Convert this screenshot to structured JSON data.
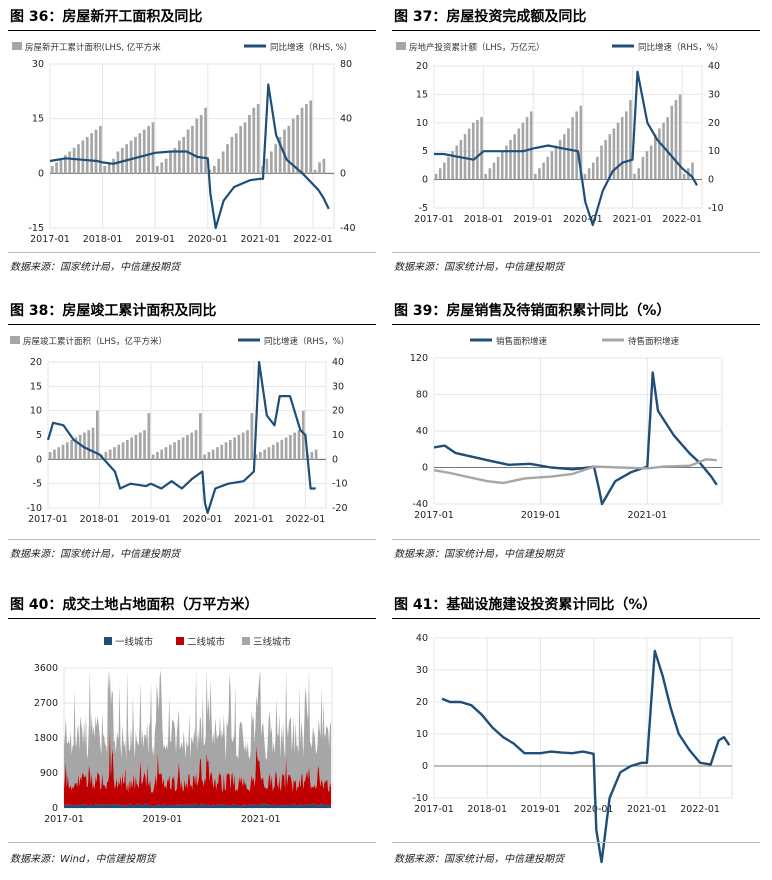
{
  "page": {
    "source_default": "数据来源：国家统计局，中信建投期货",
    "source_wind": "数据来源：Wind，中信建投期货"
  },
  "charts": [
    {
      "id": "f36",
      "title": "图 36：房屋新开工面积及同比",
      "source": "数据来源：国家统计局，中信建投期货",
      "chart_data": {
        "type": "bar+line",
        "legend": [
          "房屋新开工累计面积(LHS, 亿平方米",
          "同比增速（RHS, %）"
        ],
        "left_ylim": [
          -15,
          30
        ],
        "left_ticks": [
          -15,
          0,
          15,
          30
        ],
        "right_ylim": [
          -40,
          80
        ],
        "right_ticks": [
          -40,
          0,
          40,
          80
        ],
        "x_ticks": [
          "2017-01",
          "2018-01",
          "2019-01",
          "2020-01",
          "2021-01",
          "2022-01"
        ],
        "bars": [
          [
            2,
            3,
            4,
            5,
            6,
            7,
            8,
            9,
            10,
            11,
            12,
            13
          ],
          [
            2,
            3,
            4,
            6,
            7,
            8,
            9,
            10,
            11,
            12,
            13,
            14
          ],
          [
            2,
            3,
            4,
            6,
            7,
            9,
            10,
            12,
            13,
            15,
            16,
            18
          ],
          [
            1,
            2,
            4,
            6,
            8,
            10,
            11,
            13,
            14,
            16,
            18,
            19
          ],
          [
            2,
            4,
            6,
            8,
            10,
            12,
            13,
            15,
            16,
            18,
            19,
            20
          ],
          [
            1,
            3,
            4
          ]
        ],
        "line": [
          [
            2017.0,
            9
          ],
          [
            2017.3,
            11
          ],
          [
            2017.6,
            10
          ],
          [
            2017.9,
            9
          ],
          [
            2018.0,
            8
          ],
          [
            2018.2,
            7
          ],
          [
            2018.5,
            10
          ],
          [
            2018.8,
            13
          ],
          [
            2019.0,
            15
          ],
          [
            2019.3,
            16
          ],
          [
            2019.6,
            16
          ],
          [
            2019.8,
            12
          ],
          [
            2020.0,
            11
          ],
          [
            2020.05,
            -15
          ],
          [
            2020.15,
            -40
          ],
          [
            2020.3,
            -20
          ],
          [
            2020.5,
            -10
          ],
          [
            2020.8,
            -5
          ],
          [
            2021.0,
            -4
          ],
          [
            2021.05,
            -4
          ],
          [
            2021.15,
            65
          ],
          [
            2021.3,
            28
          ],
          [
            2021.5,
            10
          ],
          [
            2021.8,
            0
          ],
          [
            2022.0,
            -8
          ],
          [
            2022.1,
            -12
          ],
          [
            2022.2,
            -18
          ],
          [
            2022.3,
            -26
          ]
        ]
      }
    },
    {
      "id": "f37",
      "title": "图 37：房屋投资完成额及同比",
      "source": "数据来源：国家统计局，中信建投期货",
      "chart_data": {
        "type": "bar+line",
        "legend": [
          "房地产投资累计额（LHS，万亿元）",
          "同比增速（RHS，%）"
        ],
        "left_ylim": [
          -5,
          20
        ],
        "left_ticks": [
          -5,
          0,
          5,
          10,
          15,
          20
        ],
        "right_ylim": [
          -10,
          40
        ],
        "right_ticks": [
          -10,
          0,
          10,
          20,
          30,
          40
        ],
        "x_ticks": [
          "2017-01",
          "2018-01",
          "2019-01",
          "2020-01",
          "2021-01",
          "2022-01"
        ],
        "bars": [
          [
            1,
            2,
            3,
            4,
            5,
            6,
            7,
            8,
            9,
            10,
            10.5,
            11
          ],
          [
            1,
            2,
            3,
            4,
            5,
            6,
            7,
            8,
            9,
            10,
            11,
            12
          ],
          [
            1,
            2,
            3,
            4,
            5,
            6,
            7,
            8,
            9,
            11,
            12,
            13
          ],
          [
            1,
            2,
            3,
            4,
            6,
            7,
            8,
            9,
            10,
            11,
            12,
            14
          ],
          [
            1,
            2,
            4,
            5,
            6,
            8,
            9,
            10,
            11,
            13,
            14,
            15
          ],
          [
            1,
            2,
            3
          ]
        ],
        "line": [
          [
            2017.0,
            9
          ],
          [
            2017.2,
            9
          ],
          [
            2017.5,
            8
          ],
          [
            2017.8,
            7
          ],
          [
            2018.0,
            10
          ],
          [
            2018.4,
            10
          ],
          [
            2018.8,
            10
          ],
          [
            2019.0,
            11
          ],
          [
            2019.3,
            12
          ],
          [
            2019.6,
            11
          ],
          [
            2019.9,
            10
          ],
          [
            2020.05,
            -8
          ],
          [
            2020.2,
            -16
          ],
          [
            2020.4,
            -4
          ],
          [
            2020.6,
            3
          ],
          [
            2020.8,
            6
          ],
          [
            2021.0,
            7
          ],
          [
            2021.1,
            38
          ],
          [
            2021.3,
            20
          ],
          [
            2021.5,
            14
          ],
          [
            2021.7,
            10
          ],
          [
            2021.9,
            6
          ],
          [
            2022.0,
            4
          ],
          [
            2022.2,
            1
          ],
          [
            2022.3,
            -2
          ]
        ]
      }
    },
    {
      "id": "f38",
      "title": "图 38：房屋竣工累计面积及同比",
      "source": "数据来源：国家统计局，中信建投期货",
      "chart_data": {
        "type": "bar+line",
        "legend": [
          "房屋竣工累计面积（LHS，亿平方米）",
          "同比增速（RHS，%）"
        ],
        "left_ylim": [
          -10,
          20
        ],
        "left_ticks": [
          -10,
          -5,
          0,
          5,
          10,
          15,
          20
        ],
        "right_ylim": [
          -20,
          40
        ],
        "right_ticks": [
          -20,
          -10,
          0,
          10,
          20,
          30,
          40
        ],
        "x_ticks": [
          "2017-01",
          "2018-01",
          "2019-01",
          "2020-01",
          "2021-01",
          "2022-01"
        ],
        "bars": [
          [
            1.5,
            2,
            2.5,
            3,
            3.5,
            4,
            4.5,
            5,
            5.5,
            6,
            6.5,
            10
          ],
          [
            1,
            1.5,
            2,
            2.5,
            3,
            3.5,
            4,
            4.5,
            5,
            5.5,
            6,
            9.5
          ],
          [
            1,
            1.5,
            2,
            2.5,
            3,
            3.5,
            4,
            4.5,
            5,
            5.5,
            6,
            9.5
          ],
          [
            1,
            1.5,
            2,
            2.5,
            3,
            3.5,
            4,
            4.5,
            5,
            5.5,
            6,
            9.5
          ],
          [
            1,
            1.5,
            2,
            2.5,
            3,
            3.5,
            4,
            4.5,
            5,
            5.5,
            6,
            10
          ],
          [
            1,
            1.5,
            2
          ]
        ],
        "line": [
          [
            2017.0,
            8
          ],
          [
            2017.1,
            15
          ],
          [
            2017.3,
            14
          ],
          [
            2017.5,
            8
          ],
          [
            2017.7,
            5
          ],
          [
            2018.0,
            2
          ],
          [
            2018.3,
            -5
          ],
          [
            2018.4,
            -12
          ],
          [
            2018.6,
            -10
          ],
          [
            2018.9,
            -11
          ],
          [
            2019.0,
            -10
          ],
          [
            2019.2,
            -12
          ],
          [
            2019.4,
            -9
          ],
          [
            2019.6,
            -12
          ],
          [
            2019.8,
            -8
          ],
          [
            2020.0,
            -5
          ],
          [
            2020.05,
            -18
          ],
          [
            2020.1,
            -22
          ],
          [
            2020.25,
            -12
          ],
          [
            2020.5,
            -10
          ],
          [
            2020.8,
            -9
          ],
          [
            2021.0,
            -5
          ],
          [
            2021.1,
            40
          ],
          [
            2021.25,
            18
          ],
          [
            2021.4,
            14
          ],
          [
            2021.5,
            26
          ],
          [
            2021.7,
            26
          ],
          [
            2021.9,
            12
          ],
          [
            2022.0,
            10
          ],
          [
            2022.1,
            -12
          ],
          [
            2022.2,
            -12
          ]
        ]
      }
    },
    {
      "id": "f39",
      "title": "图 39：房屋销售及待销面积累计同比（%）",
      "source": "数据来源：国家统计局，中信建投期货",
      "chart_data": {
        "type": "line",
        "legend": [
          "销售面积增速",
          "待售面积增速"
        ],
        "ylim": [
          -40,
          120
        ],
        "ticks": [
          -40,
          0,
          40,
          80,
          120
        ],
        "x_ticks": [
          "2017-01",
          "2019-01",
          "2021-01"
        ],
        "series": [
          {
            "name": "销售面积增速",
            "color": "#1f4e79",
            "points": [
              [
                2017.0,
                22
              ],
              [
                2017.2,
                24
              ],
              [
                2017.4,
                16
              ],
              [
                2017.7,
                12
              ],
              [
                2018.0,
                8
              ],
              [
                2018.4,
                3
              ],
              [
                2018.8,
                4
              ],
              [
                2019.0,
                2
              ],
              [
                2019.2,
                0
              ],
              [
                2019.6,
                -2
              ],
              [
                2019.9,
                0
              ],
              [
                2020.0,
                1
              ],
              [
                2020.1,
                -25
              ],
              [
                2020.15,
                -40
              ],
              [
                2020.4,
                -15
              ],
              [
                2020.7,
                -5
              ],
              [
                2021.0,
                1
              ],
              [
                2021.1,
                104
              ],
              [
                2021.2,
                62
              ],
              [
                2021.5,
                35
              ],
              [
                2021.8,
                15
              ],
              [
                2022.0,
                4
              ],
              [
                2022.2,
                -10
              ],
              [
                2022.3,
                -19
              ]
            ]
          },
          {
            "name": "待售面积增速",
            "color": "#a6a6a6",
            "points": [
              [
                2017.0,
                -3
              ],
              [
                2017.3,
                -6
              ],
              [
                2017.6,
                -10
              ],
              [
                2018.0,
                -15
              ],
              [
                2018.3,
                -17
              ],
              [
                2018.7,
                -12
              ],
              [
                2019.2,
                -10
              ],
              [
                2019.6,
                -7
              ],
              [
                2020.0,
                1
              ],
              [
                2020.5,
                0
              ],
              [
                2021.0,
                -1
              ],
              [
                2021.3,
                1
              ],
              [
                2021.8,
                2
              ],
              [
                2022.1,
                9
              ],
              [
                2022.3,
                8
              ]
            ]
          }
        ]
      }
    },
    {
      "id": "f40",
      "title": "图 40：成交土地占地面积（万平方米）",
      "source": "数据来源：Wind，中信建投期货",
      "chart_data": {
        "type": "area",
        "legend": [
          "一线城市",
          "二线城市",
          "三线城市"
        ],
        "ylim": [
          0,
          3600
        ],
        "ticks": [
          0,
          900,
          1800,
          2700,
          3600
        ],
        "x_ticks": [
          "2017-01",
          "2019-01",
          "2021-01"
        ],
        "series": [
          {
            "name": "一线城市",
            "color": "#1f4e79",
            "approx_level": 60
          },
          {
            "name": "二线城市",
            "color": "#c00000",
            "approx_level": 500
          },
          {
            "name": "三线城市",
            "color": "#a6a6a6",
            "approx_level": 1300
          }
        ]
      }
    },
    {
      "id": "f41",
      "title": "图 41：基础设施建设投资累计同比（%）",
      "source": "数据来源：国家统计局，中信建投期货",
      "chart_data": {
        "type": "line",
        "ylim": [
          -10,
          40
        ],
        "ticks": [
          -10,
          0,
          10,
          20,
          30,
          40
        ],
        "x_ticks": [
          "2017-01",
          "2018-01",
          "2019-01",
          "2020-01",
          "2021-01",
          "2022-01"
        ],
        "series": [
          {
            "name": "",
            "color": "#1f4e79",
            "points": [
              [
                2017.15,
                21
              ],
              [
                2017.3,
                20
              ],
              [
                2017.5,
                20
              ],
              [
                2017.7,
                19
              ],
              [
                2017.9,
                16
              ],
              [
                2018.0,
                14
              ],
              [
                2018.1,
                12
              ],
              [
                2018.3,
                9
              ],
              [
                2018.5,
                7
              ],
              [
                2018.7,
                4
              ],
              [
                2019.0,
                4
              ],
              [
                2019.2,
                4.5
              ],
              [
                2019.4,
                4.2
              ],
              [
                2019.6,
                4
              ],
              [
                2019.8,
                4.5
              ],
              [
                2020.0,
                3.8
              ],
              [
                2020.05,
                -20
              ],
              [
                2020.15,
                -30
              ],
              [
                2020.3,
                -10
              ],
              [
                2020.5,
                -2
              ],
              [
                2020.7,
                0
              ],
              [
                2020.9,
                1
              ],
              [
                2021.0,
                1
              ],
              [
                2021.15,
                36
              ],
              [
                2021.3,
                28
              ],
              [
                2021.45,
                18
              ],
              [
                2021.6,
                10
              ],
              [
                2021.8,
                5
              ],
              [
                2022.0,
                1
              ],
              [
                2022.2,
                0.5
              ],
              [
                2022.35,
                8
              ],
              [
                2022.45,
                9
              ],
              [
                2022.55,
                6.5
              ]
            ]
          }
        ]
      }
    }
  ]
}
